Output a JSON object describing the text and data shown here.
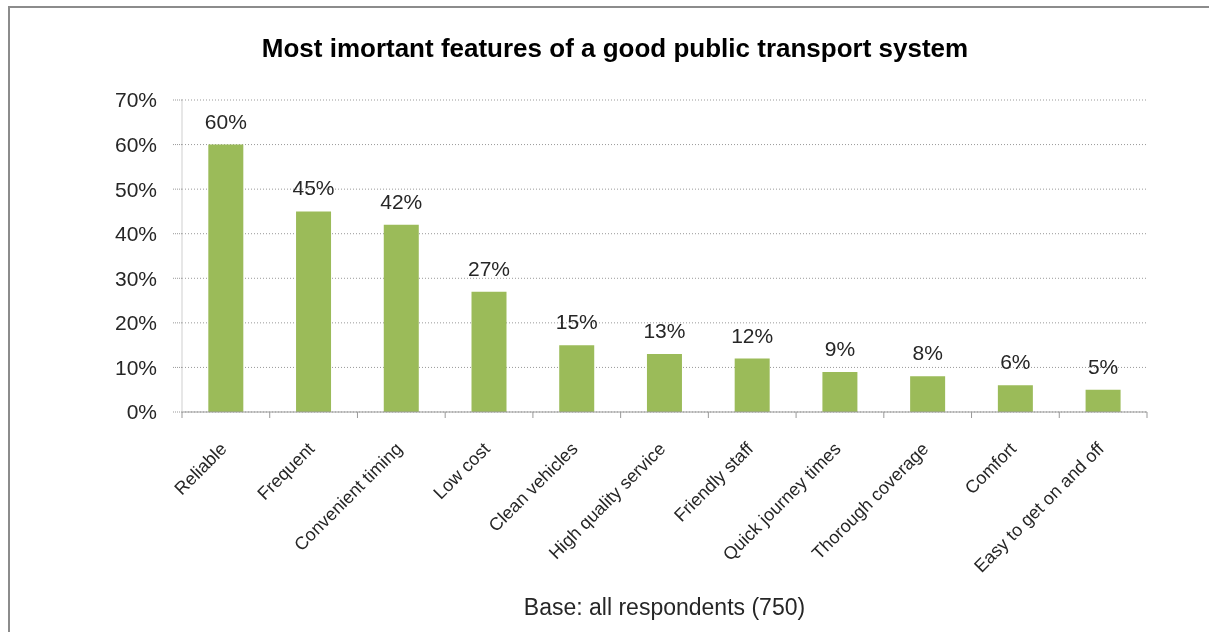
{
  "chart_data": {
    "type": "bar",
    "title": "Most imortant features of a good public transport system",
    "categories": [
      "Reliable",
      "Frequent",
      "Convenient timing",
      "Low cost",
      "Clean vehicles",
      "High quality service",
      "Friendly staff",
      "Quick journey times",
      "Thorough coverage",
      "Comfort",
      "Easy to get on and off"
    ],
    "values": [
      60,
      45,
      42,
      27,
      15,
      13,
      12,
      9,
      8,
      6,
      5
    ],
    "color": "#9bbb59",
    "value_labels": [
      "60%",
      "45%",
      "42%",
      "27%",
      "15%",
      "13%",
      "12%",
      "9%",
      "8%",
      "6%",
      "5%"
    ],
    "ylim": [
      0,
      70
    ],
    "yticks": [
      {
        "value": 0,
        "label": "0%"
      },
      {
        "value": 10,
        "label": "10%"
      },
      {
        "value": 20,
        "label": "20%"
      },
      {
        "value": 30,
        "label": "30%"
      },
      {
        "value": 40,
        "label": "40%"
      },
      {
        "value": 50,
        "label": "50%"
      },
      {
        "value": 60,
        "label": "60%"
      },
      {
        "value": 70,
        "label": "70%"
      }
    ],
    "grid": "y",
    "annotations": [
      "Base: all respondents (750)"
    ]
  }
}
